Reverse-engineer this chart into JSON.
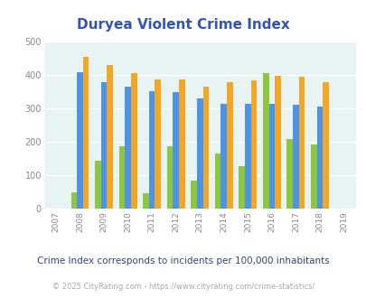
{
  "title": "Duryea Violent Crime Index",
  "years": [
    2007,
    2008,
    2009,
    2010,
    2011,
    2012,
    2013,
    2014,
    2015,
    2016,
    2017,
    2018,
    2019
  ],
  "duryea": [
    0,
    50,
    143,
    188,
    46,
    188,
    83,
    165,
    128,
    405,
    208,
    191,
    0
  ],
  "pennsylvania": [
    0,
    408,
    380,
    366,
    352,
    348,
    329,
    314,
    314,
    314,
    310,
    305,
    0
  ],
  "national": [
    0,
    454,
    431,
    405,
    387,
    388,
    366,
    378,
    383,
    397,
    394,
    380,
    0
  ],
  "colors": {
    "duryea": "#8dc63f",
    "pennsylvania": "#4d94e8",
    "national": "#f5a623"
  },
  "bg_color": "#e8f4f4",
  "ylim": [
    0,
    500
  ],
  "yticks": [
    0,
    100,
    200,
    300,
    400,
    500
  ],
  "title_color": "#3355aa",
  "subtitle": "Crime Index corresponds to incidents per 100,000 inhabitants",
  "footer": "© 2025 CityRating.com - https://www.cityrating.com/crime-statistics/",
  "subtitle_color": "#334477",
  "footer_color": "#aaaaaa",
  "bar_width": 0.25
}
